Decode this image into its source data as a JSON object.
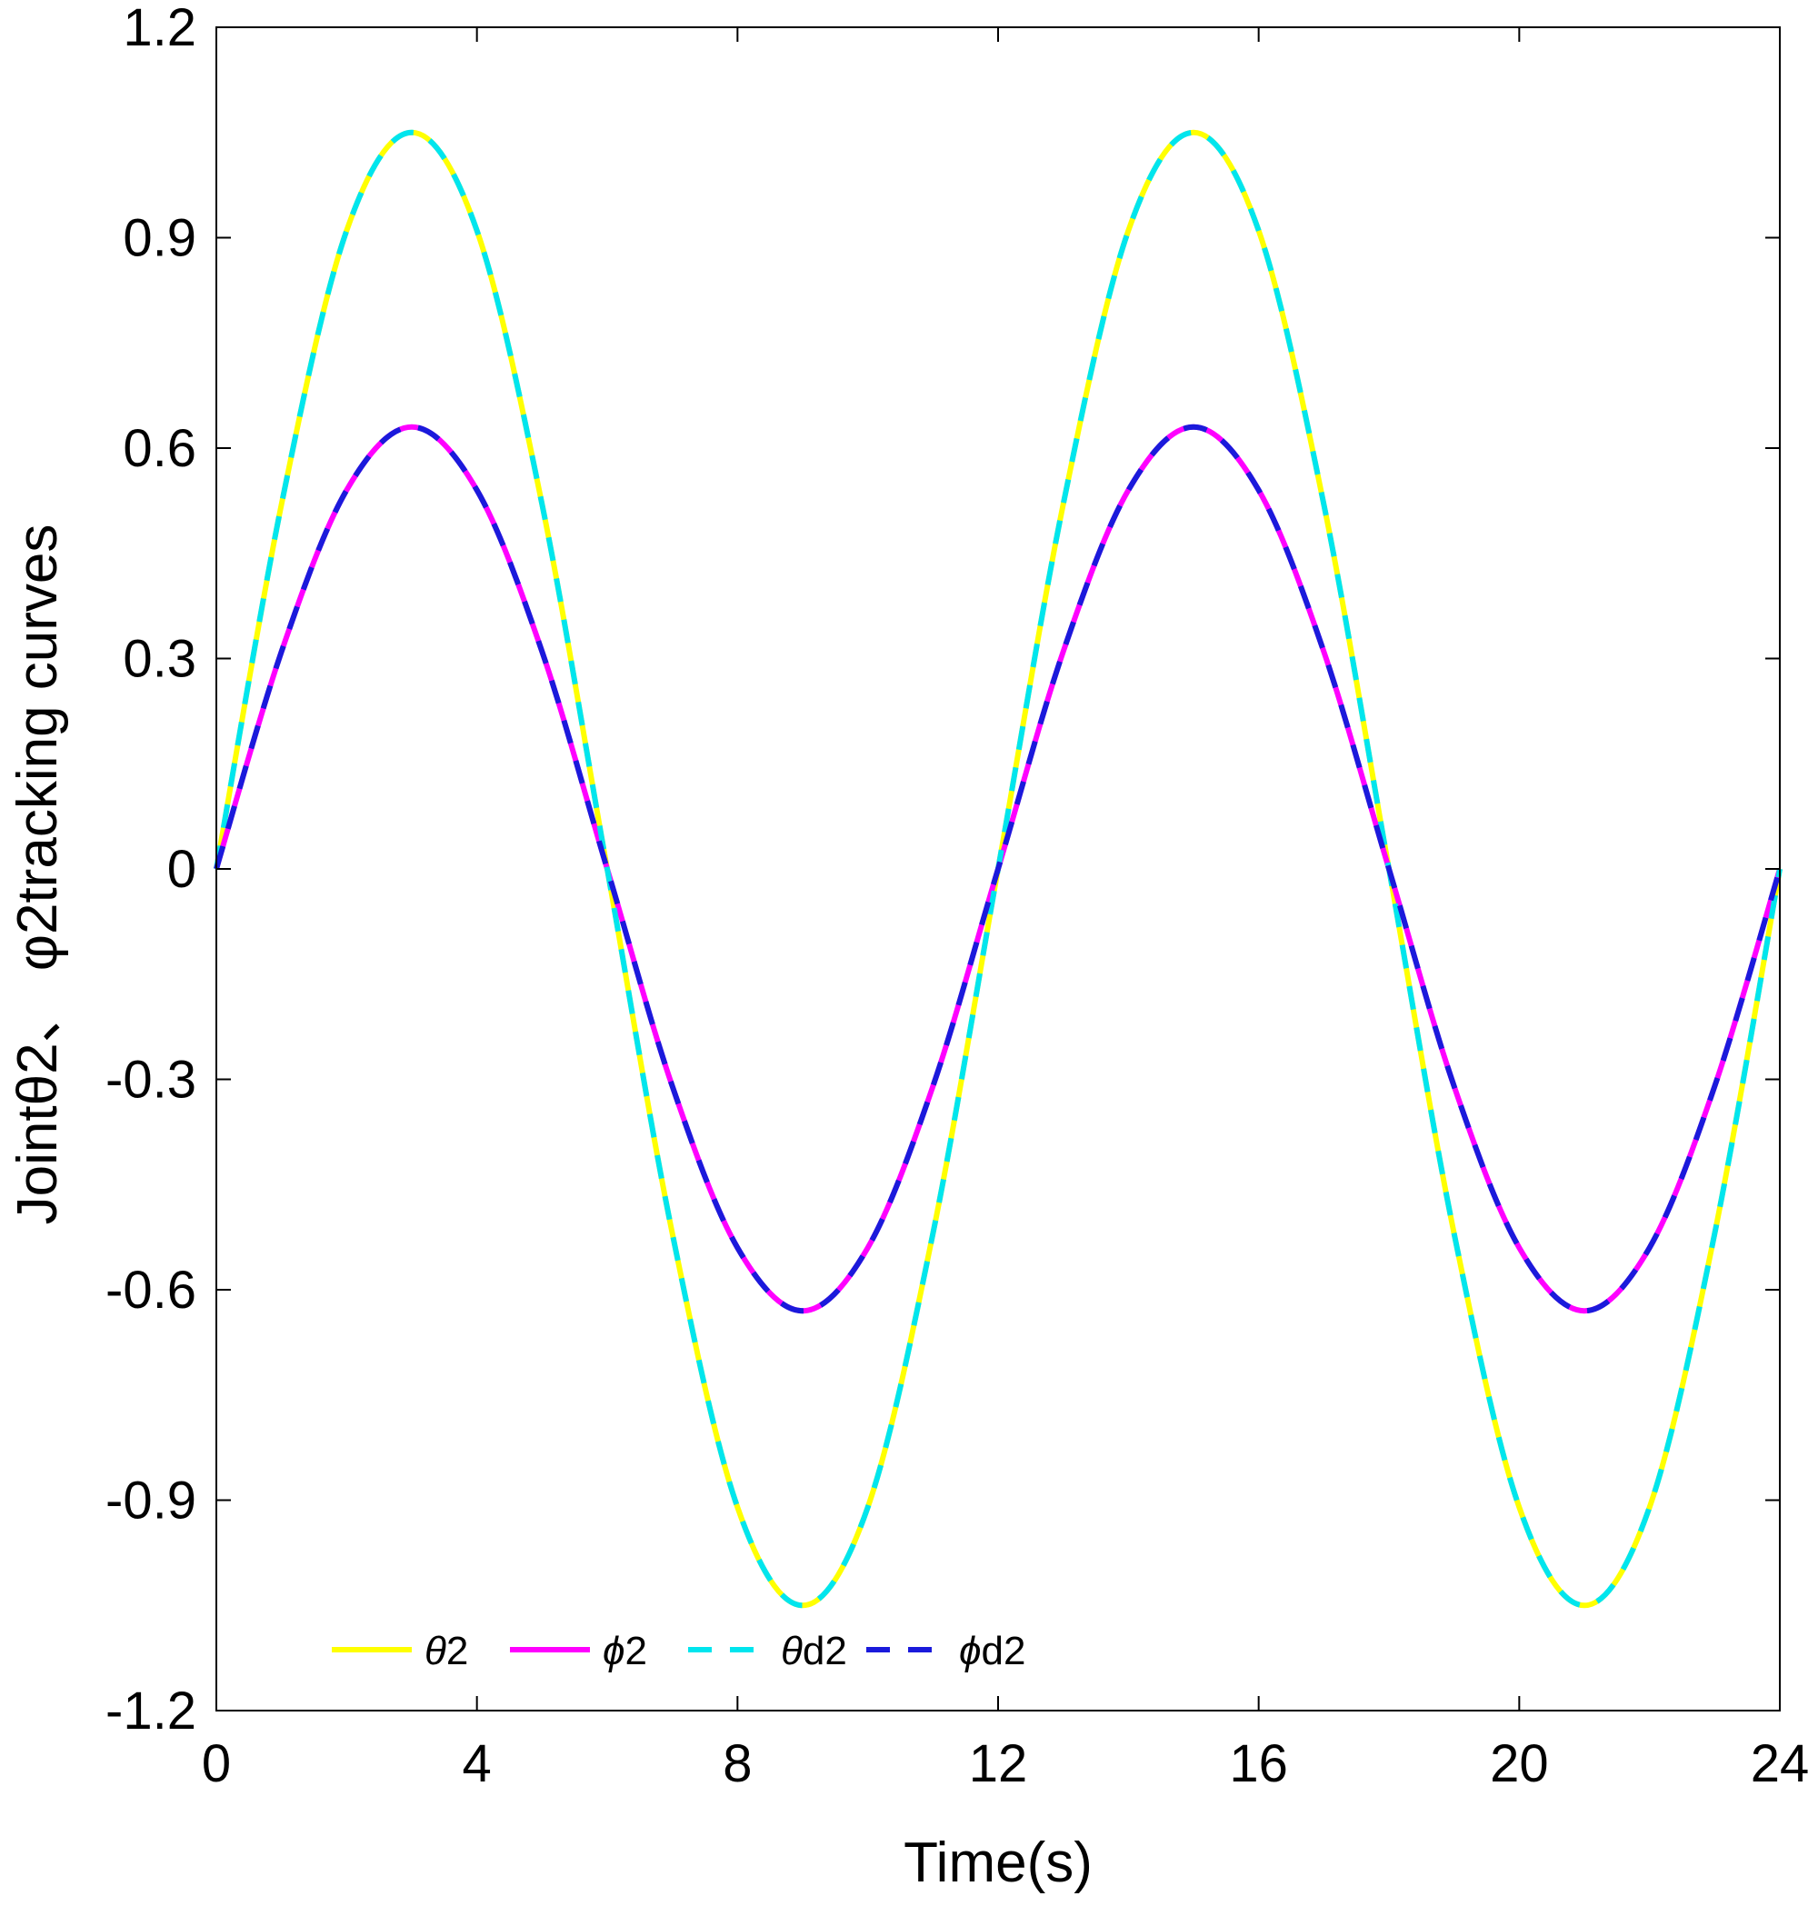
{
  "chart_data": {
    "type": "line",
    "title": "",
    "xlabel": "Time(s)",
    "ylabel": "Jointθ2、 φ2tracking curves",
    "xlim": [
      0,
      24
    ],
    "ylim": [
      -1.2,
      1.2
    ],
    "xticks": [
      "0",
      "4",
      "8",
      "12",
      "16",
      "20",
      "24"
    ],
    "yticks": [
      "-1.2",
      "-0.9",
      "-0.6",
      "-0.3",
      "0",
      "0.3",
      "0.6",
      "0.9",
      "1.2"
    ],
    "grid": false,
    "legend_position": "bottom-left",
    "x": [
      0,
      1,
      2,
      3,
      4,
      5,
      6,
      7,
      8,
      9,
      10,
      11,
      12,
      13,
      14,
      15,
      16,
      17,
      18,
      19,
      20,
      21,
      22,
      23,
      24
    ],
    "series": [
      {
        "name": "θ2",
        "legend_math": "θ",
        "legend_rest": "2",
        "color": "#ffff00",
        "style": "solid",
        "values": [
          0,
          0.52,
          0.91,
          1.05,
          0.91,
          0.52,
          0,
          -0.52,
          -0.91,
          -1.05,
          -0.91,
          -0.52,
          0,
          0.52,
          0.91,
          1.05,
          0.91,
          0.52,
          0,
          -0.52,
          -0.91,
          -1.05,
          -0.91,
          -0.52,
          0
        ]
      },
      {
        "name": "ϕ2",
        "legend_math": "ϕ",
        "legend_rest": "2",
        "color": "#ff00ff",
        "style": "solid",
        "values": [
          0,
          0.31,
          0.54,
          0.63,
          0.54,
          0.31,
          0,
          -0.31,
          -0.54,
          -0.63,
          -0.54,
          -0.31,
          0,
          0.31,
          0.54,
          0.63,
          0.54,
          0.31,
          0,
          -0.31,
          -0.54,
          -0.63,
          -0.54,
          -0.31,
          0
        ]
      },
      {
        "name": "θd2",
        "legend_math": "θ",
        "legend_rest": "d2",
        "color": "#00e5ee",
        "style": "dashed",
        "values": [
          0,
          0.52,
          0.91,
          1.05,
          0.91,
          0.52,
          0,
          -0.52,
          -0.91,
          -1.05,
          -0.91,
          -0.52,
          0,
          0.52,
          0.91,
          1.05,
          0.91,
          0.52,
          0,
          -0.52,
          -0.91,
          -1.05,
          -0.91,
          -0.52,
          0
        ]
      },
      {
        "name": "ϕd2",
        "legend_math": "ϕ",
        "legend_rest": "d2",
        "color": "#1a1adb",
        "style": "dashed",
        "values": [
          0,
          0.31,
          0.54,
          0.63,
          0.54,
          0.31,
          0,
          -0.31,
          -0.54,
          -0.63,
          -0.54,
          -0.31,
          0,
          0.31,
          0.54,
          0.63,
          0.54,
          0.31,
          0,
          -0.31,
          -0.54,
          -0.63,
          -0.54,
          -0.31,
          0
        ]
      }
    ]
  }
}
